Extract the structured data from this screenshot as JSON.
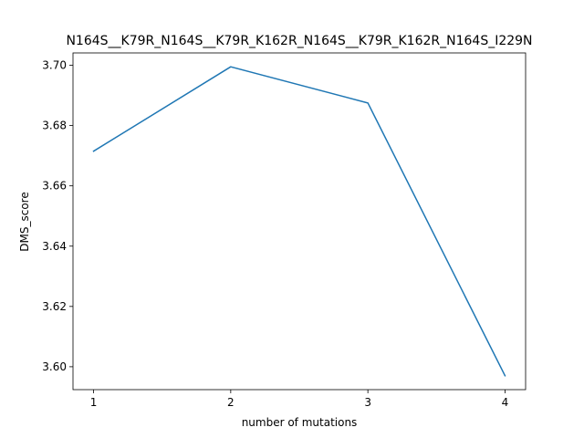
{
  "chart_data": {
    "type": "line",
    "title": "N164S__K79R_N164S__K79R_K162R_N164S__K79R_K162R_N164S_I229N",
    "xlabel": "number of mutations",
    "ylabel": "DMS_score",
    "x": [
      1,
      2,
      3,
      4
    ],
    "series": [
      {
        "values": [
          3.6715,
          3.6995,
          3.6875,
          3.597
        ],
        "color": "#1f77b4"
      }
    ],
    "xticks": [
      1,
      2,
      3,
      4
    ],
    "xtick_labels": [
      "1",
      "2",
      "3",
      "4"
    ],
    "yticks": [
      3.6,
      3.62,
      3.64,
      3.66,
      3.68,
      3.7
    ],
    "ytick_labels": [
      "3.60",
      "3.62",
      "3.64",
      "3.66",
      "3.68",
      "3.70"
    ],
    "xlim": [
      0.85,
      4.15
    ],
    "ylim": [
      3.5924,
      3.7041
    ],
    "grid": false
  }
}
